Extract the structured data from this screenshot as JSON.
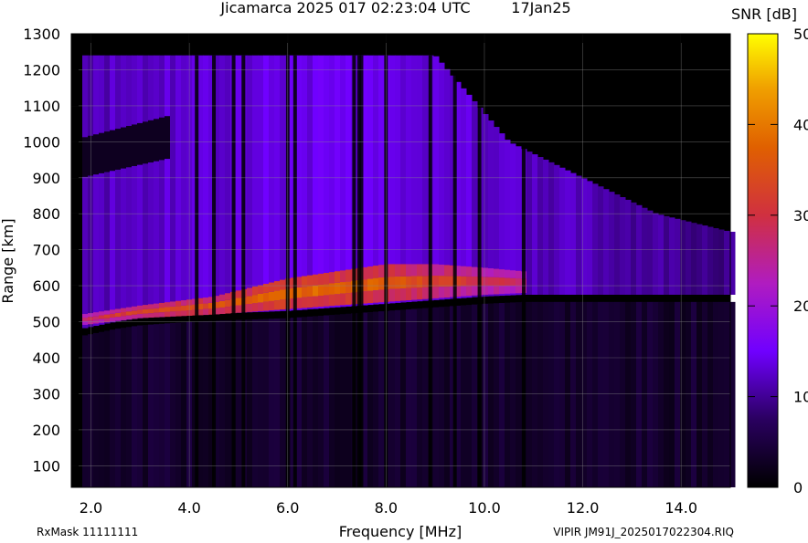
{
  "chart_data": {
    "type": "heatmap",
    "title": "Jicamarca 2025 017 02:23:04 UTC",
    "date_label": "17Jan25",
    "xlabel": "Frequency [MHz]",
    "ylabel": "Range [km]",
    "xlim": [
      1.6,
      15.0
    ],
    "ylim": [
      40,
      1300
    ],
    "x_ticks": [
      {
        "value": 2.0,
        "label": "2.0"
      },
      {
        "value": 4.0,
        "label": "4.0"
      },
      {
        "value": 6.0,
        "label": "6.0"
      },
      {
        "value": 8.0,
        "label": "8.0"
      },
      {
        "value": 10.0,
        "label": "10.0"
      },
      {
        "value": 12.0,
        "label": "12.0"
      },
      {
        "value": 14.0,
        "label": "14.0"
      }
    ],
    "y_ticks": [
      {
        "value": 100,
        "label": "100"
      },
      {
        "value": 200,
        "label": "200"
      },
      {
        "value": 300,
        "label": "300"
      },
      {
        "value": 400,
        "label": "400"
      },
      {
        "value": 500,
        "label": "500"
      },
      {
        "value": 600,
        "label": "600"
      },
      {
        "value": 700,
        "label": "700"
      },
      {
        "value": 800,
        "label": "800"
      },
      {
        "value": 900,
        "label": "900"
      },
      {
        "value": 1000,
        "label": "1000"
      },
      {
        "value": 1100,
        "label": "1100"
      },
      {
        "value": 1200,
        "label": "1200"
      },
      {
        "value": 1300,
        "label": "1300"
      }
    ],
    "grid": true,
    "colorbar": {
      "label": "SNR [dB]",
      "range": [
        0,
        50
      ],
      "ticks": [
        {
          "value": 0,
          "label": "0"
        },
        {
          "value": 10,
          "label": "10"
        },
        {
          "value": 20,
          "label": "20"
        },
        {
          "value": 30,
          "label": "30"
        },
        {
          "value": 40,
          "label": "40"
        },
        {
          "value": 50,
          "label": "50"
        }
      ],
      "colors": [
        "#000000",
        "#3a0080",
        "#7a00ff",
        "#c020a0",
        "#e06000",
        "#ffff00"
      ]
    },
    "f_layer_trace": {
      "description_free": true,
      "freq_mhz": [
        1.8,
        2.5,
        3.0,
        4.0,
        5.0,
        6.0,
        7.0,
        8.0,
        9.0,
        10.0,
        10.8
      ],
      "range_km": [
        480,
        500,
        510,
        520,
        525,
        530,
        540,
        550,
        560,
        570,
        575
      ]
    },
    "strong_band": {
      "freq_mhz": [
        1.8,
        3.0,
        4.5,
        6.0,
        7.0,
        8.0,
        9.0,
        10.0,
        10.8
      ],
      "low_km": [
        490,
        510,
        520,
        535,
        545,
        555,
        565,
        575,
        580
      ],
      "high_km": [
        520,
        545,
        570,
        620,
        640,
        660,
        660,
        650,
        640
      ],
      "peak_snr_db": [
        28,
        33,
        35,
        38,
        38,
        36,
        33,
        30,
        28
      ]
    },
    "diffuse_region": {
      "freq_mhz": [
        1.8,
        3.0,
        5.0,
        7.0,
        9.0,
        10.5,
        12.0,
        13.5,
        15.0
      ],
      "top_km": [
        1240,
        1240,
        1240,
        1240,
        1240,
        1000,
        900,
        800,
        750
      ],
      "snr_db": [
        10,
        11,
        12,
        13,
        12,
        11,
        10,
        9,
        8
      ]
    },
    "vertical_gaps_mhz": [
      4.15,
      4.5,
      4.9,
      5.1,
      6.0,
      6.15,
      7.35,
      7.45,
      7.5,
      8.0,
      8.9,
      9.4,
      9.9,
      10.8
    ]
  },
  "footer": {
    "rxmask": "RxMask 11111111",
    "filename": "VIPIR  JM91J_2025017022304.RIQ"
  }
}
